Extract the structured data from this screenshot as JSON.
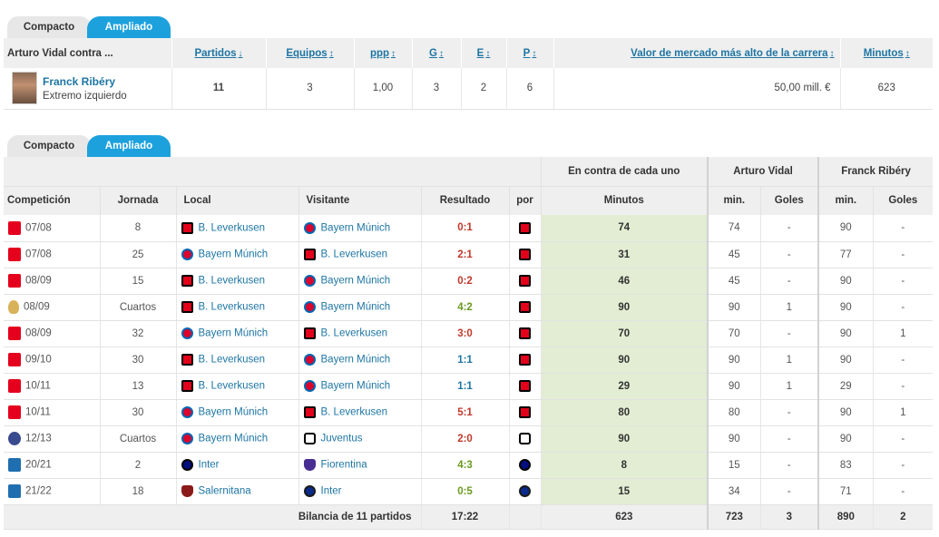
{
  "tabs1": {
    "compact": "Compacto",
    "extended": "Ampliado"
  },
  "summary": {
    "header": {
      "col_player": "Arturo Vidal contra ...",
      "col_matches": "Partidos",
      "col_teams": "Equipos",
      "col_ppg": "ppp",
      "col_w": "G",
      "col_d": "E",
      "col_l": "P",
      "col_value": "Valor de mercado más alto de la carrera",
      "col_minutes": "Minutos"
    },
    "row": {
      "name": "Franck Ribéry",
      "position": "Extremo izquierdo",
      "matches": "11",
      "teams": "3",
      "ppg": "1,00",
      "w": "3",
      "d": "2",
      "l": "6",
      "value": "50,00 mill. €",
      "minutes": "623"
    }
  },
  "tabs2": {
    "compact": "Compacto",
    "extended": "Ampliado"
  },
  "details": {
    "group_headers": {
      "against_each": "En contra de cada uno",
      "player_a": "Arturo Vidal",
      "player_b": "Franck Ribéry"
    },
    "headers": {
      "competition": "Competición",
      "matchday": "Jornada",
      "home": "Local",
      "away": "Visitante",
      "result": "Resultado",
      "by": "por",
      "minutes": "Minutos",
      "a_min": "min.",
      "a_goals": "Goles",
      "b_min": "min.",
      "b_goals": "Goles"
    },
    "rows": [
      {
        "comp": "bundesliga-icon",
        "season": "07/08",
        "day": "8",
        "home": "B. Leverkusen",
        "home_club": "lev",
        "away": "Bayern Múnich",
        "away_club": "bay",
        "result": "0:1",
        "res_color": "red",
        "by": "lev",
        "min": "74",
        "a_min": "74",
        "a_goals": "-",
        "b_min": "90",
        "b_goals": "-"
      },
      {
        "comp": "bundesliga-icon",
        "season": "07/08",
        "day": "25",
        "home": "Bayern Múnich",
        "home_club": "bay",
        "away": "B. Leverkusen",
        "away_club": "lev",
        "result": "2:1",
        "res_color": "red",
        "by": "lev",
        "min": "31",
        "a_min": "45",
        "a_goals": "-",
        "b_min": "77",
        "b_goals": "-"
      },
      {
        "comp": "bundesliga-icon",
        "season": "08/09",
        "day": "15",
        "home": "B. Leverkusen",
        "home_club": "lev",
        "away": "Bayern Múnich",
        "away_club": "bay",
        "result": "0:2",
        "res_color": "red",
        "by": "lev",
        "min": "46",
        "a_min": "45",
        "a_goals": "-",
        "b_min": "90",
        "b_goals": "-"
      },
      {
        "comp": "dfb-pokal-icon",
        "season": "08/09",
        "day": "Cuartos",
        "home": "B. Leverkusen",
        "home_club": "lev",
        "away": "Bayern Múnich",
        "away_club": "bay",
        "result": "4:2",
        "res_color": "green",
        "by": "lev",
        "min": "90",
        "a_min": "90",
        "a_goals": "1",
        "b_min": "90",
        "b_goals": "-"
      },
      {
        "comp": "bundesliga-icon",
        "season": "08/09",
        "day": "32",
        "home": "Bayern Múnich",
        "home_club": "bay",
        "away": "B. Leverkusen",
        "away_club": "lev",
        "result": "3:0",
        "res_color": "red",
        "by": "lev",
        "min": "70",
        "a_min": "70",
        "a_goals": "-",
        "b_min": "90",
        "b_goals": "1"
      },
      {
        "comp": "bundesliga-icon",
        "season": "09/10",
        "day": "30",
        "home": "B. Leverkusen",
        "home_club": "lev",
        "away": "Bayern Múnich",
        "away_club": "bay",
        "result": "1:1",
        "res_color": "blue",
        "by": "lev",
        "min": "90",
        "a_min": "90",
        "a_goals": "1",
        "b_min": "90",
        "b_goals": "-"
      },
      {
        "comp": "bundesliga-icon",
        "season": "10/11",
        "day": "13",
        "home": "B. Leverkusen",
        "home_club": "lev",
        "away": "Bayern Múnich",
        "away_club": "bay",
        "result": "1:1",
        "res_color": "blue",
        "by": "lev",
        "min": "29",
        "a_min": "90",
        "a_goals": "1",
        "b_min": "29",
        "b_goals": "-"
      },
      {
        "comp": "bundesliga-icon",
        "season": "10/11",
        "day": "30",
        "home": "Bayern Múnich",
        "home_club": "bay",
        "away": "B. Leverkusen",
        "away_club": "lev",
        "result": "5:1",
        "res_color": "red",
        "by": "lev",
        "min": "80",
        "a_min": "80",
        "a_goals": "-",
        "b_min": "90",
        "b_goals": "1"
      },
      {
        "comp": "champions-league-icon",
        "season": "12/13",
        "day": "Cuartos",
        "home": "Bayern Múnich",
        "home_club": "bay",
        "away": "Juventus",
        "away_club": "juv",
        "result": "2:0",
        "res_color": "red",
        "by": "juv",
        "min": "90",
        "a_min": "90",
        "a_goals": "-",
        "b_min": "90",
        "b_goals": "-"
      },
      {
        "comp": "serie-a-icon",
        "season": "20/21",
        "day": "2",
        "home": "Inter",
        "home_club": "int",
        "away": "Fiorentina",
        "away_club": "fio",
        "result": "4:3",
        "res_color": "green",
        "by": "int",
        "min": "8",
        "a_min": "15",
        "a_goals": "-",
        "b_min": "83",
        "b_goals": "-"
      },
      {
        "comp": "serie-a-icon",
        "season": "21/22",
        "day": "18",
        "home": "Salernitana",
        "home_club": "sal",
        "away": "Inter",
        "away_club": "inter2",
        "result": "0:5",
        "res_color": "green",
        "by": "inter2",
        "min": "15",
        "a_min": "34",
        "a_goals": "-",
        "b_min": "71",
        "b_goals": "-"
      }
    ],
    "footer": {
      "label": "Bilancia de 11 partidos",
      "result": "17:22",
      "min": "623",
      "a_min": "723",
      "a_goals": "3",
      "b_min": "890",
      "b_goals": "2"
    }
  },
  "colors": {
    "accent": "#1da1dd",
    "link": "#1d75a3",
    "highlight": "#e2edd3"
  }
}
